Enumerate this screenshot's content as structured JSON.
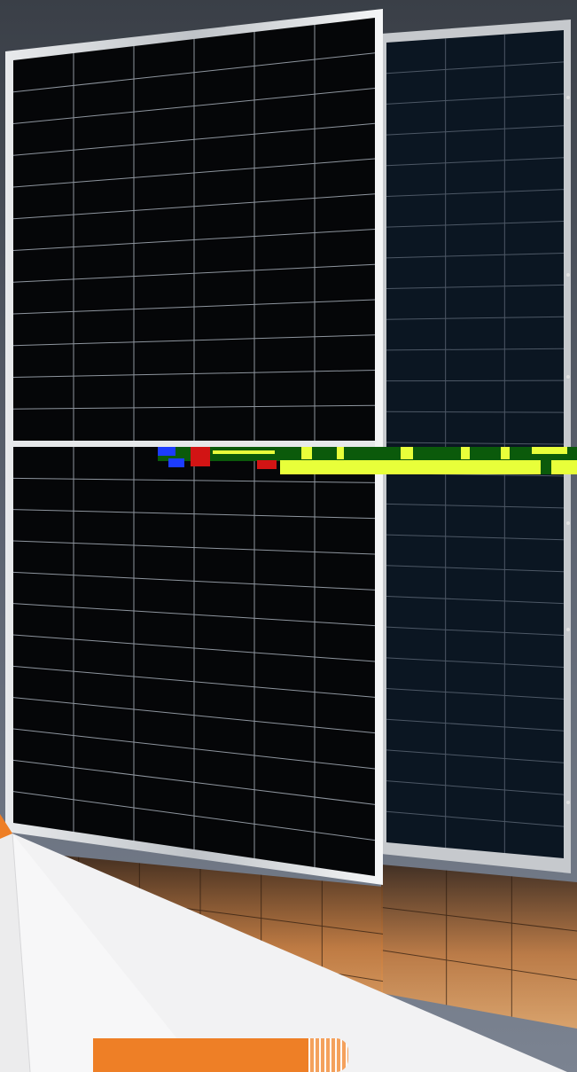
{
  "scene": {
    "background_top": "#3a3f47",
    "background_bottom": "#7b8391",
    "panel_frame_color": "#cfd2d6",
    "panel_cell_color": "#050608",
    "panel_grid_color": "#8e959e",
    "panel_back_cell_color": "#0b1622",
    "reflection_color": "#c77b3c",
    "white_panel_color": "#f2f2f3",
    "accent_color": "#ee7f26",
    "glitch_lime": "#e8ff3a",
    "glitch_green": "#0b5a0b",
    "glitch_red": "#d21414",
    "glitch_blue": "#1c3cff"
  },
  "icons": {
    "front_panel": "solar-panel-front",
    "back_panel": "solar-panel-back"
  },
  "banner": {
    "label": ""
  }
}
